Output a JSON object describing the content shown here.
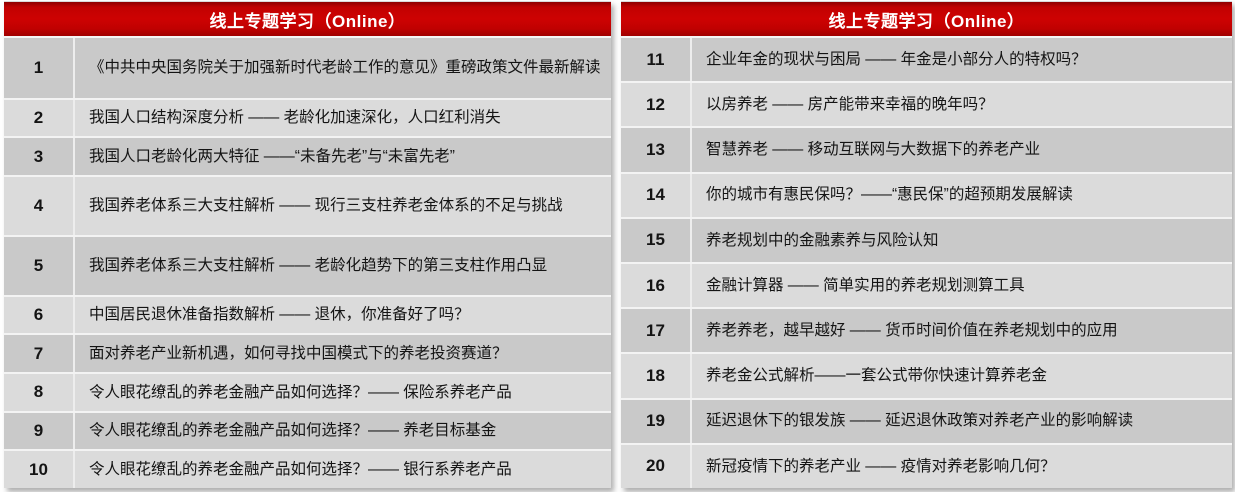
{
  "colors": {
    "header_red": "#C00101",
    "header_red_dark": "#8E0000",
    "row_dark": "#C9C9C9",
    "row_light": "#DBDBDB",
    "header_text": "#FFFFFF",
    "body_text": "#141414"
  },
  "tables": {
    "left": {
      "header": "线上专题学习（Online）",
      "rows": [
        {
          "num": "1",
          "title": "《中共中央国务院关于加强新时代老龄工作的意见》重磅政策文件最新解读"
        },
        {
          "num": "2",
          "title": "我国人口结构深度分析 —— 老龄化加速深化，人口红利消失"
        },
        {
          "num": "3",
          "title": "我国人口老龄化两大特征 ——“未备先老”与“未富先老”"
        },
        {
          "num": "4",
          "title": "我国养老体系三大支柱解析 —— 现行三支柱养老金体系的不足与挑战"
        },
        {
          "num": "5",
          "title": "我国养老体系三大支柱解析 —— 老龄化趋势下的第三支柱作用凸显"
        },
        {
          "num": "6",
          "title": "中国居民退休准备指数解析 —— 退休，你准备好了吗？"
        },
        {
          "num": "7",
          "title": "面对养老产业新机遇，如何寻找中国模式下的养老投资赛道？"
        },
        {
          "num": "8",
          "title": "令人眼花缭乱的养老金融产品如何选择？—— 保险系养老产品"
        },
        {
          "num": "9",
          "title": "令人眼花缭乱的养老金融产品如何选择？—— 养老目标基金"
        },
        {
          "num": "10",
          "title": "令人眼花缭乱的养老金融产品如何选择？—— 银行系养老产品"
        }
      ]
    },
    "right": {
      "header": "线上专题学习（Online）",
      "rows": [
        {
          "num": "11",
          "title": "企业年金的现状与困局 —— 年金是小部分人的特权吗？"
        },
        {
          "num": "12",
          "title": "以房养老 —— 房产能带来幸福的晚年吗？"
        },
        {
          "num": "13",
          "title": "智慧养老 —— 移动互联网与大数据下的养老产业"
        },
        {
          "num": "14",
          "title": "你的城市有惠民保吗？——“惠民保”的超预期发展解读"
        },
        {
          "num": "15",
          "title": "养老规划中的金融素养与风险认知"
        },
        {
          "num": "16",
          "title": "金融计算器 —— 简单实用的养老规划测算工具"
        },
        {
          "num": "17",
          "title": "养老养老，越早越好 —— 货币时间价值在养老规划中的应用"
        },
        {
          "num": "18",
          "title": "养老金公式解析——一套公式带你快速计算养老金"
        },
        {
          "num": "19",
          "title": "延迟退休下的银发族 —— 延迟退休政策对养老产业的影响解读"
        },
        {
          "num": "20",
          "title": "新冠疫情下的养老产业 —— 疫情对养老影响几何？"
        }
      ]
    }
  }
}
